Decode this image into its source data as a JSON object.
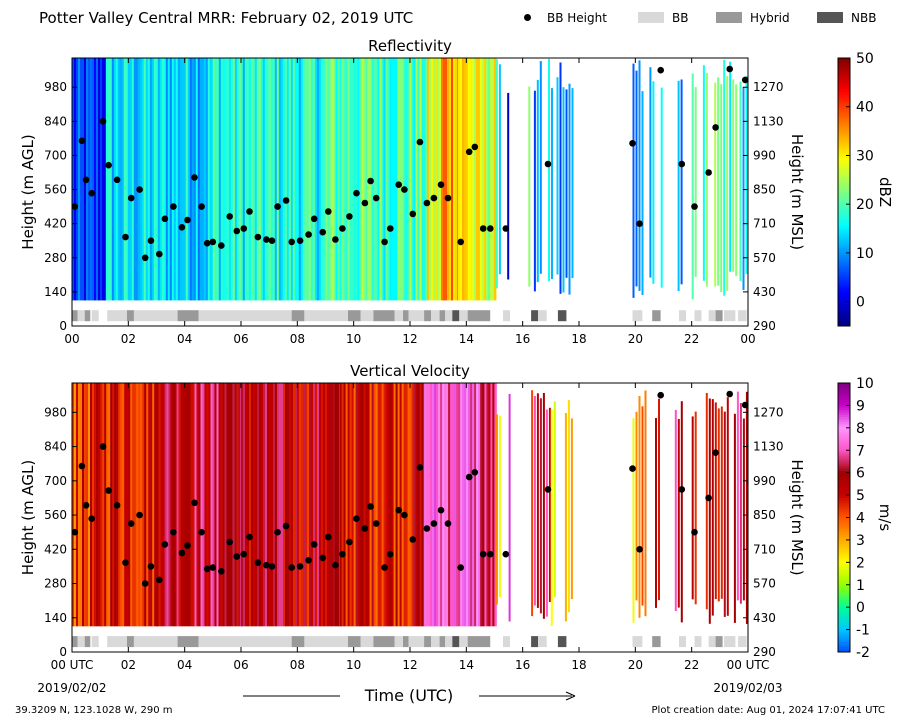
{
  "header": {
    "title": "Potter Valley Central MRR:  February 02, 2019 UTC",
    "legend": [
      {
        "label": "BB Height",
        "kind": "dot",
        "color": "#000000"
      },
      {
        "label": "BB",
        "kind": "swatch",
        "color": "#d9d9d9"
      },
      {
        "label": "Hybrid",
        "kind": "swatch",
        "color": "#999999"
      },
      {
        "label": "NBB",
        "kind": "swatch",
        "color": "#555555"
      }
    ]
  },
  "footer": {
    "location": "39.3209 N, 123.1028 W, 290 m",
    "created": "Plot creation date: Aug 01, 2024 17:07:41 UTC",
    "xlabel": "Time (UTC)",
    "start_date": "2019/02/02",
    "end_date": "2019/02/03"
  },
  "chart_data": [
    {
      "type": "heatmap",
      "title": "Reflectivity",
      "ylabel": "Height (m AGL)",
      "y2label": "Height (m MSL)",
      "colorbar_label": "dBZ",
      "colorbar_ticks": [
        "50",
        "40",
        "30",
        "20",
        "10",
        "0"
      ],
      "colorbar_range": [
        -5,
        50
      ],
      "colormap": [
        "#00007f",
        "#0000ff",
        "#007fff",
        "#00ffff",
        "#7fff7f",
        "#ffff00",
        "#ff7f00",
        "#ff0000",
        "#7f0000"
      ],
      "x_ticks": [
        "00",
        "02",
        "04",
        "06",
        "08",
        "10",
        "12",
        "14",
        "16",
        "18",
        "20",
        "22",
        "00"
      ],
      "xlim": [
        0,
        24
      ],
      "yticks": [
        "0",
        "140",
        "280",
        "420",
        "560",
        "700",
        "840",
        "980"
      ],
      "y2ticks": [
        "290",
        "430",
        "570",
        "710",
        "850",
        "990",
        "1130",
        "1270"
      ],
      "ylim": [
        0,
        1100
      ],
      "data_ylim": [
        105,
        1100
      ],
      "regime_ylim": [
        20,
        65
      ],
      "typical_profile": [
        {
          "t0": 0.0,
          "t1": 1.2,
          "v": 4
        },
        {
          "t0": 1.2,
          "t1": 5.0,
          "v": 14
        },
        {
          "t0": 5.0,
          "t1": 9.0,
          "v": 17
        },
        {
          "t0": 9.0,
          "t1": 12.6,
          "v": 20
        },
        {
          "t0": 12.6,
          "t1": 13.1,
          "v": 27
        },
        {
          "t0": 13.1,
          "t1": 13.7,
          "v": 36
        },
        {
          "t0": 13.7,
          "t1": 14.2,
          "v": 31
        },
        {
          "t0": 14.2,
          "t1": 15.0,
          "v": 27
        }
      ],
      "sparse_segments": [
        {
          "t0": 15.05,
          "t1": 15.2,
          "v": 14
        },
        {
          "t0": 15.45,
          "t1": 15.5,
          "v": 1
        },
        {
          "t0": 16.2,
          "t1": 16.3,
          "v": 18
        },
        {
          "t0": 16.4,
          "t1": 16.5,
          "v": 3
        },
        {
          "t0": 16.5,
          "t1": 16.7,
          "v": 9
        },
        {
          "t0": 16.9,
          "t1": 17.1,
          "v": 14
        },
        {
          "t0": 17.2,
          "t1": 17.8,
          "v": 8
        },
        {
          "t0": 19.9,
          "t1": 20.3,
          "v": 10
        },
        {
          "t0": 20.5,
          "t1": 20.7,
          "v": 15
        },
        {
          "t0": 20.9,
          "t1": 21.0,
          "v": 20
        },
        {
          "t0": 21.5,
          "t1": 21.7,
          "v": 11
        },
        {
          "t0": 22.0,
          "t1": 22.2,
          "v": 17
        },
        {
          "t0": 22.4,
          "t1": 22.6,
          "v": 19
        },
        {
          "t0": 22.8,
          "t1": 23.6,
          "v": 20
        },
        {
          "t0": 23.7,
          "t1": 24.0,
          "v": 14
        }
      ]
    },
    {
      "type": "heatmap",
      "title": "Vertical Velocity",
      "ylabel": "Height (m AGL)",
      "y2label": "Height (m MSL)",
      "colorbar_label": "m/s",
      "colorbar_ticks": [
        "10",
        "9",
        "8",
        "7",
        "6",
        "5",
        "4",
        "3",
        "2",
        "1",
        "0",
        "-1",
        "-2"
      ],
      "colorbar_range": [
        -2,
        10
      ],
      "colormap": [
        "#0050ff",
        "#00c8ff",
        "#00ff96",
        "#96ff00",
        "#ffff00",
        "#ffaa00",
        "#ff5500",
        "#c80000",
        "#a00000",
        "#ff55c8",
        "#ff96ff",
        "#c800c8",
        "#800080"
      ],
      "x_ticks": [
        "00 UTC",
        "02",
        "04",
        "06",
        "08",
        "10",
        "12",
        "14",
        "16",
        "18",
        "20",
        "22",
        "00 UTC"
      ],
      "xlim": [
        0,
        24
      ],
      "yticks": [
        "0",
        "140",
        "280",
        "420",
        "560",
        "700",
        "840",
        "980"
      ],
      "y2ticks": [
        "290",
        "430",
        "570",
        "710",
        "850",
        "990",
        "1130",
        "1270"
      ],
      "ylim": [
        0,
        1100
      ],
      "data_ylim": [
        105,
        1100
      ],
      "regime_ylim": [
        20,
        65
      ],
      "typical_profile": [
        {
          "t0": 0.0,
          "t1": 1.0,
          "v": 4.5
        },
        {
          "t0": 1.0,
          "t1": 3.0,
          "v": 5
        },
        {
          "t0": 3.0,
          "t1": 6.0,
          "v": 6
        },
        {
          "t0": 6.0,
          "t1": 9.5,
          "v": 5.5
        },
        {
          "t0": 9.5,
          "t1": 12.5,
          "v": 5
        },
        {
          "t0": 12.5,
          "t1": 14.5,
          "v": 7.5
        },
        {
          "t0": 14.5,
          "t1": 15.0,
          "v": 6
        }
      ],
      "sparse_segments": [
        {
          "t0": 15.05,
          "t1": 15.2,
          "v": 3
        },
        {
          "t0": 15.5,
          "t1": 15.6,
          "v": 8
        },
        {
          "t0": 16.3,
          "t1": 16.4,
          "v": 5
        },
        {
          "t0": 16.4,
          "t1": 17.0,
          "v": 6
        },
        {
          "t0": 17.0,
          "t1": 17.2,
          "v": 2
        },
        {
          "t0": 17.5,
          "t1": 17.8,
          "v": 2
        },
        {
          "t0": 19.9,
          "t1": 20.4,
          "v": 3
        },
        {
          "t0": 20.7,
          "t1": 20.9,
          "v": 5
        },
        {
          "t0": 21.4,
          "t1": 21.7,
          "v": 6
        },
        {
          "t0": 22.0,
          "t1": 22.2,
          "v": 5
        },
        {
          "t0": 22.5,
          "t1": 23.3,
          "v": 5.5
        },
        {
          "t0": 23.5,
          "t1": 24.0,
          "v": 6
        }
      ]
    }
  ],
  "bb_height_points": [
    {
      "t": 0.1,
      "h": 490
    },
    {
      "t": 0.35,
      "h": 760
    },
    {
      "t": 0.5,
      "h": 600
    },
    {
      "t": 0.7,
      "h": 545
    },
    {
      "t": 1.1,
      "h": 840
    },
    {
      "t": 1.3,
      "h": 660
    },
    {
      "t": 1.6,
      "h": 600
    },
    {
      "t": 1.9,
      "h": 365
    },
    {
      "t": 2.1,
      "h": 525
    },
    {
      "t": 2.4,
      "h": 560
    },
    {
      "t": 2.6,
      "h": 280
    },
    {
      "t": 2.8,
      "h": 350
    },
    {
      "t": 3.1,
      "h": 295
    },
    {
      "t": 3.3,
      "h": 440
    },
    {
      "t": 3.6,
      "h": 490
    },
    {
      "t": 3.9,
      "h": 405
    },
    {
      "t": 4.1,
      "h": 435
    },
    {
      "t": 4.35,
      "h": 610
    },
    {
      "t": 4.6,
      "h": 490
    },
    {
      "t": 4.8,
      "h": 340
    },
    {
      "t": 5.0,
      "h": 345
    },
    {
      "t": 5.3,
      "h": 330
    },
    {
      "t": 5.6,
      "h": 450
    },
    {
      "t": 5.85,
      "h": 390
    },
    {
      "t": 6.1,
      "h": 400
    },
    {
      "t": 6.3,
      "h": 470
    },
    {
      "t": 6.6,
      "h": 365
    },
    {
      "t": 6.9,
      "h": 355
    },
    {
      "t": 7.1,
      "h": 350
    },
    {
      "t": 7.3,
      "h": 490
    },
    {
      "t": 7.6,
      "h": 515
    },
    {
      "t": 7.8,
      "h": 345
    },
    {
      "t": 8.1,
      "h": 350
    },
    {
      "t": 8.4,
      "h": 375
    },
    {
      "t": 8.6,
      "h": 440
    },
    {
      "t": 8.9,
      "h": 385
    },
    {
      "t": 9.1,
      "h": 470
    },
    {
      "t": 9.35,
      "h": 355
    },
    {
      "t": 9.6,
      "h": 400
    },
    {
      "t": 9.85,
      "h": 450
    },
    {
      "t": 10.1,
      "h": 545
    },
    {
      "t": 10.4,
      "h": 505
    },
    {
      "t": 10.6,
      "h": 595
    },
    {
      "t": 10.8,
      "h": 525
    },
    {
      "t": 11.1,
      "h": 345
    },
    {
      "t": 11.3,
      "h": 400
    },
    {
      "t": 11.6,
      "h": 580
    },
    {
      "t": 11.8,
      "h": 560
    },
    {
      "t": 12.1,
      "h": 460
    },
    {
      "t": 12.35,
      "h": 755
    },
    {
      "t": 12.6,
      "h": 505
    },
    {
      "t": 12.85,
      "h": 525
    },
    {
      "t": 13.1,
      "h": 580
    },
    {
      "t": 13.35,
      "h": 525
    },
    {
      "t": 13.8,
      "h": 345
    },
    {
      "t": 14.1,
      "h": 715
    },
    {
      "t": 14.3,
      "h": 735
    },
    {
      "t": 14.6,
      "h": 400
    },
    {
      "t": 14.85,
      "h": 400
    },
    {
      "t": 15.4,
      "h": 400
    },
    {
      "t": 16.9,
      "h": 665
    },
    {
      "t": 19.9,
      "h": 750
    },
    {
      "t": 20.15,
      "h": 420
    },
    {
      "t": 20.9,
      "h": 1050
    },
    {
      "t": 21.65,
      "h": 665
    },
    {
      "t": 22.1,
      "h": 490
    },
    {
      "t": 22.6,
      "h": 630
    },
    {
      "t": 22.85,
      "h": 815
    },
    {
      "t": 23.35,
      "h": 1055
    },
    {
      "t": 23.9,
      "h": 1010
    }
  ],
  "regime_segments": [
    {
      "t0": 0.0,
      "t1": 0.2,
      "kind": "Hybrid"
    },
    {
      "t0": 0.2,
      "t1": 0.45,
      "kind": "BB"
    },
    {
      "t0": 0.45,
      "t1": 0.65,
      "kind": "Hybrid"
    },
    {
      "t0": 0.7,
      "t1": 0.95,
      "kind": "BB"
    },
    {
      "t0": 1.25,
      "t1": 1.95,
      "kind": "BB"
    },
    {
      "t0": 1.95,
      "t1": 2.2,
      "kind": "Hybrid"
    },
    {
      "t0": 2.2,
      "t1": 3.75,
      "kind": "BB"
    },
    {
      "t0": 3.75,
      "t1": 4.5,
      "kind": "Hybrid"
    },
    {
      "t0": 4.5,
      "t1": 7.8,
      "kind": "BB"
    },
    {
      "t0": 7.8,
      "t1": 8.25,
      "kind": "Hybrid"
    },
    {
      "t0": 8.25,
      "t1": 9.8,
      "kind": "BB"
    },
    {
      "t0": 9.8,
      "t1": 10.25,
      "kind": "Hybrid"
    },
    {
      "t0": 10.25,
      "t1": 10.7,
      "kind": "BB"
    },
    {
      "t0": 10.7,
      "t1": 11.45,
      "kind": "Hybrid"
    },
    {
      "t0": 11.45,
      "t1": 11.75,
      "kind": "BB"
    },
    {
      "t0": 11.75,
      "t1": 11.95,
      "kind": "Hybrid"
    },
    {
      "t0": 11.95,
      "t1": 12.5,
      "kind": "BB"
    },
    {
      "t0": 12.5,
      "t1": 12.75,
      "kind": "Hybrid"
    },
    {
      "t0": 12.75,
      "t1": 13.05,
      "kind": "BB"
    },
    {
      "t0": 13.05,
      "t1": 13.25,
      "kind": "Hybrid"
    },
    {
      "t0": 13.25,
      "t1": 13.5,
      "kind": "BB"
    },
    {
      "t0": 13.5,
      "t1": 13.75,
      "kind": "NBB"
    },
    {
      "t0": 13.75,
      "t1": 14.05,
      "kind": "BB"
    },
    {
      "t0": 14.05,
      "t1": 14.85,
      "kind": "Hybrid"
    },
    {
      "t0": 15.3,
      "t1": 15.55,
      "kind": "BB"
    },
    {
      "t0": 16.3,
      "t1": 16.55,
      "kind": "NBB"
    },
    {
      "t0": 16.55,
      "t1": 16.85,
      "kind": "BB"
    },
    {
      "t0": 17.25,
      "t1": 17.55,
      "kind": "NBB"
    },
    {
      "t0": 19.9,
      "t1": 20.25,
      "kind": "BB"
    },
    {
      "t0": 20.6,
      "t1": 20.9,
      "kind": "Hybrid"
    },
    {
      "t0": 21.55,
      "t1": 21.8,
      "kind": "BB"
    },
    {
      "t0": 22.1,
      "t1": 22.35,
      "kind": "BB"
    },
    {
      "t0": 22.6,
      "t1": 22.85,
      "kind": "BB"
    },
    {
      "t0": 22.85,
      "t1": 23.1,
      "kind": "Hybrid"
    },
    {
      "t0": 23.15,
      "t1": 23.55,
      "kind": "BB"
    },
    {
      "t0": 23.65,
      "t1": 23.95,
      "kind": "BB"
    }
  ]
}
